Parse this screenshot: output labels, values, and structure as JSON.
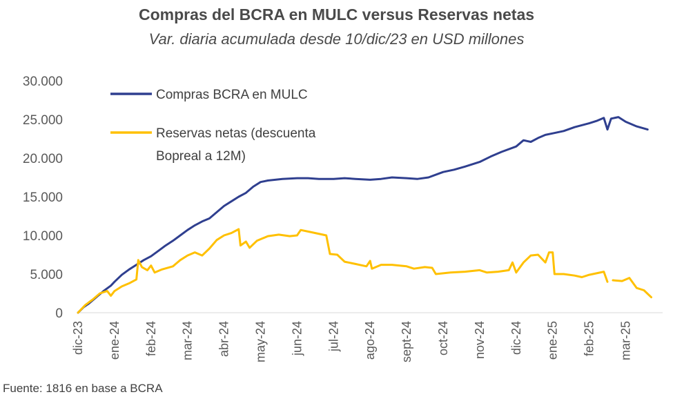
{
  "title": "Compras del BCRA en MULC versus Reservas netas",
  "subtitle": "Var. diaria acumulada desde 10/dic/23 en USD millones",
  "source": "Fuente: 1816 en base a BCRA",
  "chart_data": {
    "type": "line",
    "title": "Compras del BCRA en MULC versus Reservas netas",
    "subtitle": "Var. diaria acumulada desde 10/dic/23 en USD millones",
    "x_ticks": [
      "dic-23",
      "ene-24",
      "feb-24",
      "mar-24",
      "abr-24",
      "may-24",
      "jun-24",
      "jul-24",
      "ago-24",
      "sept-24",
      "oct-24",
      "nov-24",
      "dic-24",
      "ene-25",
      "feb-25",
      "mar-25"
    ],
    "y_ticks": [
      "30.000",
      "25.000",
      "20.000",
      "15.000",
      "10.000",
      "5.000",
      "0"
    ],
    "ylim": [
      0,
      30000
    ],
    "grid": false,
    "legend_position": "top-left",
    "x_units": "months since dic-23 tick",
    "series": [
      {
        "name": "Compras BCRA en MULC",
        "color": "#2f3f8f",
        "points": [
          [
            0,
            0
          ],
          [
            0.15,
            700
          ],
          [
            0.3,
            1200
          ],
          [
            0.5,
            2000
          ],
          [
            0.7,
            2800
          ],
          [
            0.9,
            3500
          ],
          [
            1.0,
            4000
          ],
          [
            1.2,
            4900
          ],
          [
            1.4,
            5600
          ],
          [
            1.6,
            6200
          ],
          [
            1.8,
            6800
          ],
          [
            2.0,
            7300
          ],
          [
            2.2,
            8000
          ],
          [
            2.4,
            8700
          ],
          [
            2.6,
            9300
          ],
          [
            2.8,
            10000
          ],
          [
            3.0,
            10700
          ],
          [
            3.2,
            11300
          ],
          [
            3.4,
            11800
          ],
          [
            3.6,
            12200
          ],
          [
            3.8,
            13000
          ],
          [
            4.0,
            13800
          ],
          [
            4.2,
            14400
          ],
          [
            4.4,
            15000
          ],
          [
            4.6,
            15500
          ],
          [
            4.8,
            16300
          ],
          [
            5.0,
            16900
          ],
          [
            5.2,
            17100
          ],
          [
            5.4,
            17200
          ],
          [
            5.6,
            17300
          ],
          [
            6.0,
            17400
          ],
          [
            6.3,
            17400
          ],
          [
            6.6,
            17300
          ],
          [
            7.0,
            17300
          ],
          [
            7.3,
            17400
          ],
          [
            7.6,
            17300
          ],
          [
            8.0,
            17200
          ],
          [
            8.3,
            17300
          ],
          [
            8.6,
            17500
          ],
          [
            9.0,
            17400
          ],
          [
            9.3,
            17300
          ],
          [
            9.6,
            17500
          ],
          [
            10.0,
            18200
          ],
          [
            10.3,
            18500
          ],
          [
            10.6,
            18900
          ],
          [
            11.0,
            19500
          ],
          [
            11.3,
            20200
          ],
          [
            11.6,
            20800
          ],
          [
            12.0,
            21500
          ],
          [
            12.2,
            22300
          ],
          [
            12.4,
            22100
          ],
          [
            12.6,
            22600
          ],
          [
            12.8,
            23000
          ],
          [
            13.0,
            23200
          ],
          [
            13.3,
            23500
          ],
          [
            13.6,
            24000
          ],
          [
            14.0,
            24500
          ],
          [
            14.2,
            24800
          ],
          [
            14.4,
            25200
          ],
          [
            14.5,
            23700
          ],
          [
            14.6,
            25100
          ],
          [
            14.8,
            25300
          ],
          [
            15.0,
            24700
          ],
          [
            15.3,
            24100
          ],
          [
            15.6,
            23700
          ]
        ]
      },
      {
        "name": "Reservas netas (descuenta Bopreal a 12M)",
        "legend_lines": [
          "Reservas netas (descuenta",
          "Bopreal a 12M)"
        ],
        "color": "#ffc000",
        "points": [
          [
            0,
            0
          ],
          [
            0.2,
            1000
          ],
          [
            0.4,
            1700
          ],
          [
            0.6,
            2500
          ],
          [
            0.8,
            2800
          ],
          [
            0.9,
            2200
          ],
          [
            1.0,
            2800
          ],
          [
            1.2,
            3400
          ],
          [
            1.4,
            3800
          ],
          [
            1.6,
            4300
          ],
          [
            1.65,
            6800
          ],
          [
            1.75,
            5900
          ],
          [
            1.9,
            5500
          ],
          [
            2.0,
            6100
          ],
          [
            2.1,
            5200
          ],
          [
            2.3,
            5600
          ],
          [
            2.6,
            6000
          ],
          [
            2.8,
            6800
          ],
          [
            3.0,
            7400
          ],
          [
            3.2,
            7800
          ],
          [
            3.4,
            7400
          ],
          [
            3.6,
            8300
          ],
          [
            3.8,
            9400
          ],
          [
            4.0,
            10000
          ],
          [
            4.2,
            10300
          ],
          [
            4.4,
            10800
          ],
          [
            4.45,
            8700
          ],
          [
            4.6,
            9200
          ],
          [
            4.7,
            8400
          ],
          [
            4.9,
            9300
          ],
          [
            5.2,
            9900
          ],
          [
            5.5,
            10100
          ],
          [
            5.8,
            9900
          ],
          [
            6.0,
            10000
          ],
          [
            6.1,
            10700
          ],
          [
            6.4,
            10400
          ],
          [
            6.8,
            10000
          ],
          [
            6.9,
            7600
          ],
          [
            7.1,
            7500
          ],
          [
            7.3,
            6600
          ],
          [
            7.6,
            6300
          ],
          [
            7.9,
            6000
          ],
          [
            8.0,
            6700
          ],
          [
            8.05,
            5700
          ],
          [
            8.3,
            6200
          ],
          [
            8.6,
            6200
          ],
          [
            9.0,
            6000
          ],
          [
            9.2,
            5700
          ],
          [
            9.5,
            5900
          ],
          [
            9.7,
            5800
          ],
          [
            9.8,
            5000
          ],
          [
            10.2,
            5200
          ],
          [
            10.6,
            5300
          ],
          [
            11.0,
            5500
          ],
          [
            11.2,
            5200
          ],
          [
            11.5,
            5300
          ],
          [
            11.8,
            5500
          ],
          [
            11.9,
            6500
          ],
          [
            12.0,
            5200
          ],
          [
            12.2,
            6500
          ],
          [
            12.4,
            7400
          ],
          [
            12.6,
            7500
          ],
          [
            12.8,
            6500
          ],
          [
            12.9,
            7800
          ],
          [
            13.0,
            7800
          ],
          [
            13.05,
            5000
          ],
          [
            13.3,
            5000
          ],
          [
            13.6,
            4800
          ],
          [
            13.8,
            4600
          ],
          [
            14.0,
            4900
          ],
          [
            14.2,
            5100
          ],
          [
            14.4,
            5300
          ],
          [
            14.5,
            4000
          ]
        ]
      },
      {
        "name": "Reservas netas (descuenta Bopreal a 12M)",
        "color": "#ffc000",
        "points": [
          [
            14.65,
            4200
          ],
          [
            14.9,
            4100
          ],
          [
            15.1,
            4500
          ],
          [
            15.3,
            3200
          ],
          [
            15.5,
            2900
          ],
          [
            15.7,
            2000
          ]
        ]
      }
    ]
  }
}
